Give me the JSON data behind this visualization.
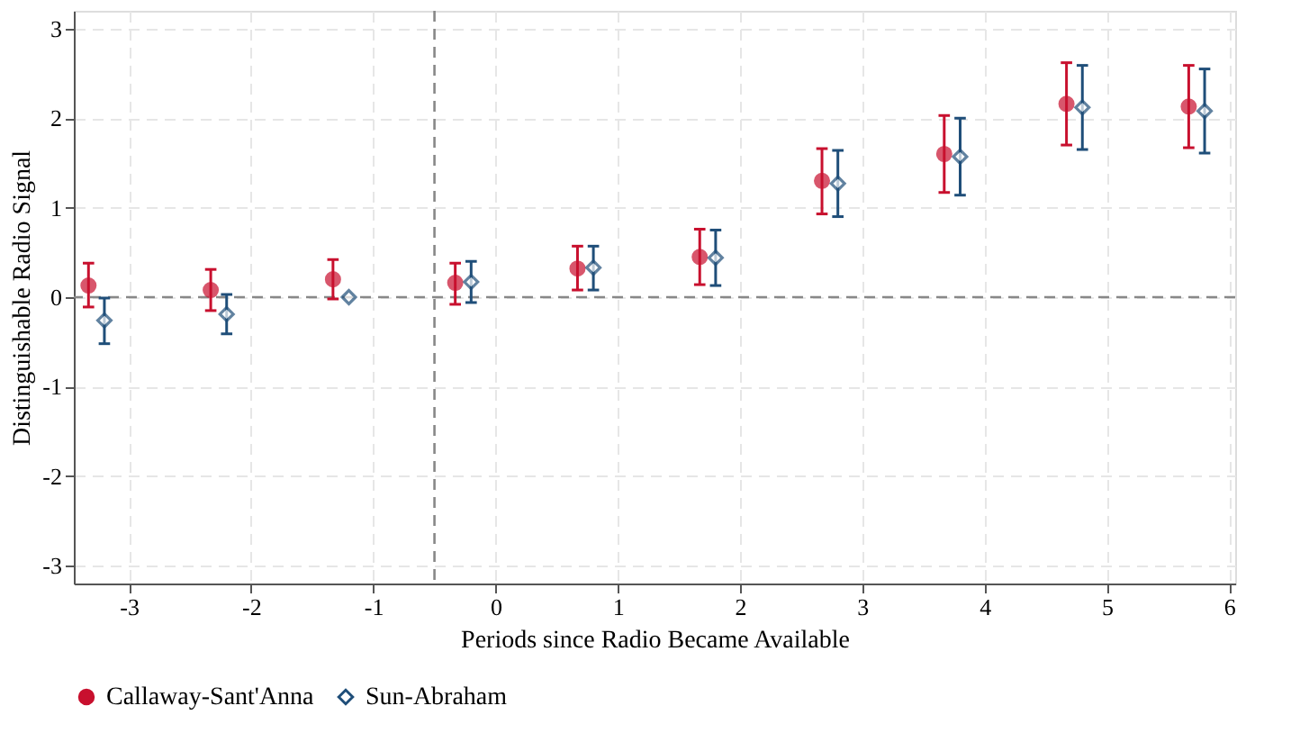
{
  "chart_data": {
    "type": "scatter",
    "xlabel": "Periods since Radio Became Available",
    "ylabel": "Distinguishable Radio Signal",
    "xlim": [
      -3.45,
      6.05
    ],
    "xticks": [
      -3,
      -2,
      -1,
      0,
      1,
      2,
      3,
      4,
      5,
      6
    ],
    "ylim": [
      -3.2,
      3.2
    ],
    "yticks": [
      -3,
      -2,
      -1,
      0,
      1,
      2,
      3
    ],
    "grid": true,
    "legend": "bottom",
    "series": [
      {
        "name": "Callaway-Sant'Anna",
        "color": "#c8102e",
        "marker": "circle",
        "x": [
          -3.33,
          -2.33,
          -1.33,
          -0.33,
          0.67,
          1.67,
          2.67,
          3.67,
          4.67,
          5.67
        ],
        "values": [
          0.13,
          0.08,
          0.2,
          0.16,
          0.32,
          0.45,
          1.3,
          1.6,
          2.16,
          2.13
        ],
        "errors": [
          [
            -0.11,
            0.38
          ],
          [
            -0.15,
            0.31
          ],
          [
            -0.02,
            0.42
          ],
          [
            -0.08,
            0.38
          ],
          [
            0.08,
            0.57
          ],
          [
            0.14,
            0.76
          ],
          [
            0.93,
            1.66
          ],
          [
            1.17,
            2.03
          ],
          [
            1.7,
            2.62
          ],
          [
            1.67,
            2.59
          ]
        ]
      },
      {
        "name": "Sun-Abraham",
        "color": "#1f4e79",
        "marker": "diamond",
        "x": [
          -3.2,
          -2.2,
          -1.2,
          -0.2,
          0.8,
          1.8,
          2.8,
          3.8,
          4.8,
          5.8
        ],
        "values": [
          -0.26,
          -0.19,
          0.0,
          0.17,
          0.33,
          0.44,
          1.27,
          1.57,
          2.12,
          2.08
        ],
        "errors": [
          [
            -0.52,
            -0.01
          ],
          [
            -0.41,
            0.03
          ],
          null,
          [
            -0.06,
            0.4
          ],
          [
            0.08,
            0.57
          ],
          [
            0.13,
            0.75
          ],
          [
            0.9,
            1.64
          ],
          [
            1.14,
            2.0
          ],
          [
            1.65,
            2.59
          ],
          [
            1.61,
            2.55
          ]
        ]
      }
    ],
    "ref_lines": [
      {
        "axis": "y",
        "value": 0,
        "color": "#888888",
        "line_style": "dashed"
      },
      {
        "axis": "x",
        "value": -0.5,
        "color": "#888888",
        "line_style": "dashed"
      }
    ]
  }
}
